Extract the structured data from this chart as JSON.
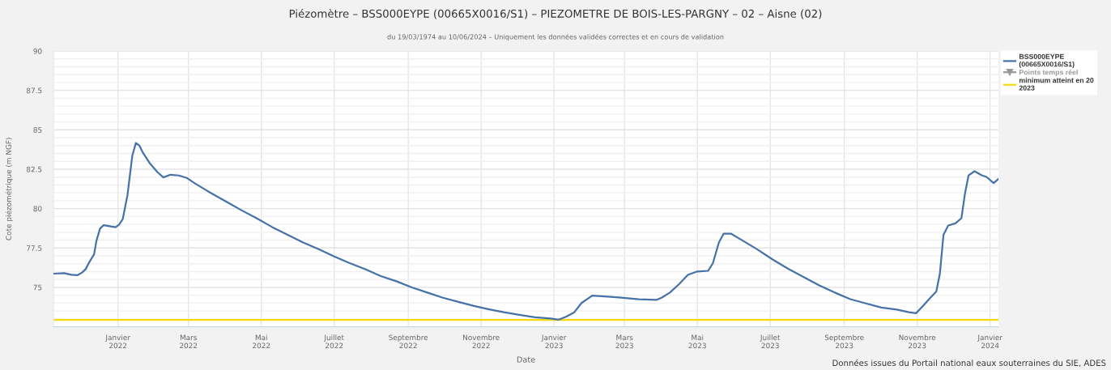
{
  "chart_data": {
    "type": "line",
    "title": "Piézomètre – BSS000EYPE (00665X0016/S1) – PIEZOMETRE DE BOIS-LES-PARGNY – 02 – Aisne (02)",
    "subtitle": "du 19/03/1974 au 10/06/2024 – Uniquement les données validées correctes et en cours de validation",
    "xlabel": "Date",
    "ylabel": "Cote piézométrique (m NGF)",
    "series": [
      {
        "name": "BSS000EYPE\n(00665X0016/S1)",
        "color": "#4572a7",
        "x": [
          "2021-11-08",
          "2021-11-17",
          "2021-11-23",
          "2021-11-28",
          "2021-12-02",
          "2021-12-05",
          "2021-12-08",
          "2021-12-12",
          "2021-12-14",
          "2021-12-17",
          "2021-12-20",
          "2021-12-24",
          "2021-12-30",
          "2022-01-02",
          "2022-01-05",
          "2022-01-09",
          "2022-01-13",
          "2022-01-16",
          "2022-01-19",
          "2022-01-22",
          "2022-01-28",
          "2022-02-03",
          "2022-02-08",
          "2022-02-14",
          "2022-02-21",
          "2022-02-28",
          "2022-03-06",
          "2022-03-19",
          "2022-04-01",
          "2022-04-14",
          "2022-04-27",
          "2022-05-10",
          "2022-05-23",
          "2022-06-05",
          "2022-06-18",
          "2022-07-01",
          "2022-07-14",
          "2022-07-27",
          "2022-08-09",
          "2022-08-22",
          "2022-09-04",
          "2022-09-17",
          "2022-09-30",
          "2022-10-13",
          "2022-10-26",
          "2022-11-07",
          "2022-11-20",
          "2022-12-03",
          "2022-12-16",
          "2022-12-29",
          "2023-01-05",
          "2023-01-11",
          "2023-01-18",
          "2023-01-24",
          "2023-02-02",
          "2023-02-15",
          "2023-02-28",
          "2023-03-13",
          "2023-03-28",
          "2023-04-01",
          "2023-04-08",
          "2023-04-16",
          "2023-04-23",
          "2023-05-01",
          "2023-05-10",
          "2023-05-14",
          "2023-05-19",
          "2023-05-23",
          "2023-05-29",
          "2023-06-07",
          "2023-06-20",
          "2023-07-03",
          "2023-07-16",
          "2023-07-29",
          "2023-08-11",
          "2023-08-24",
          "2023-09-06",
          "2023-09-19",
          "2023-10-02",
          "2023-10-15",
          "2023-10-25",
          "2023-10-31",
          "2023-11-05",
          "2023-11-12",
          "2023-11-17",
          "2023-11-20",
          "2023-11-23",
          "2023-11-27",
          "2023-12-03",
          "2023-12-08",
          "2023-12-11",
          "2023-12-14",
          "2023-12-19",
          "2023-12-25",
          "2023-12-29",
          "2024-01-04",
          "2024-01-08"
        ],
        "values": [
          75.87,
          75.9,
          75.8,
          75.77,
          75.94,
          76.16,
          76.6,
          77.1,
          77.96,
          78.73,
          78.95,
          78.9,
          78.82,
          78.99,
          79.33,
          80.87,
          83.35,
          84.16,
          83.99,
          83.53,
          82.84,
          82.32,
          81.98,
          82.15,
          82.1,
          81.93,
          81.62,
          81.02,
          80.47,
          79.91,
          79.39,
          78.83,
          78.34,
          77.85,
          77.42,
          76.96,
          76.54,
          76.15,
          75.72,
          75.39,
          75.0,
          74.67,
          74.34,
          74.08,
          73.82,
          73.62,
          73.42,
          73.26,
          73.1,
          73.03,
          72.95,
          73.13,
          73.42,
          74.01,
          74.48,
          74.41,
          74.34,
          74.25,
          74.21,
          74.34,
          74.67,
          75.23,
          75.79,
          76.01,
          76.05,
          76.54,
          77.85,
          78.41,
          78.41,
          78.01,
          77.42,
          76.77,
          76.18,
          75.65,
          75.13,
          74.67,
          74.25,
          73.98,
          73.72,
          73.59,
          73.42,
          73.36,
          73.75,
          74.34,
          74.74,
          75.88,
          78.34,
          78.93,
          79.06,
          79.39,
          80.96,
          82.11,
          82.37,
          82.11,
          82.01,
          81.62,
          81.88
        ]
      },
      {
        "name": "Points temps réel",
        "type": "line",
        "color": "#999999",
        "marker": "triangle"
      }
    ],
    "ref_lines": [
      {
        "axis": "y",
        "value": 72.93,
        "label": "minimum atteint en 20\n2023",
        "color": "#f5d90a"
      }
    ],
    "xlim": [
      "2021-11-08",
      "2024-01-08"
    ],
    "xticks": [
      {
        "value": "2022-01-01",
        "label": "Janvier\n2022"
      },
      {
        "value": "2022-03-01",
        "label": "Mars\n2022"
      },
      {
        "value": "2022-05-01",
        "label": "Mai\n2022"
      },
      {
        "value": "2022-07-01",
        "label": "Juillet\n2022"
      },
      {
        "value": "2022-09-01",
        "label": "Septembre\n2022"
      },
      {
        "value": "2022-11-01",
        "label": "Novembre\n2022"
      },
      {
        "value": "2023-01-01",
        "label": "Janvier\n2023"
      },
      {
        "value": "2023-03-01",
        "label": "Mars\n2023"
      },
      {
        "value": "2023-05-01",
        "label": "Mai\n2023"
      },
      {
        "value": "2023-07-01",
        "label": "Juillet\n2023"
      },
      {
        "value": "2023-09-01",
        "label": "Septembre\n2023"
      },
      {
        "value": "2023-11-01",
        "label": "Novembre\n2023"
      },
      {
        "value": "2024-01-01",
        "label": "Janvier\n2024"
      }
    ],
    "ylim": [
      72.5,
      90
    ],
    "yticks": [
      {
        "value": 73,
        "label": null
      },
      {
        "value": 73.5,
        "label": null
      },
      {
        "value": 74,
        "label": null
      },
      {
        "value": 74.5,
        "label": null
      },
      75,
      {
        "value": 75.5,
        "label": null
      },
      {
        "value": 76,
        "label": null
      },
      {
        "value": 76.5,
        "label": null
      },
      {
        "value": 77,
        "label": null
      },
      77.5,
      {
        "value": 78,
        "label": null
      },
      {
        "value": 78.5,
        "label": null
      },
      {
        "value": 79,
        "label": null
      },
      {
        "value": 79.5,
        "label": null
      },
      80,
      {
        "value": 80.5,
        "label": null
      },
      {
        "value": 81,
        "label": null
      },
      {
        "value": 81.5,
        "label": null
      },
      {
        "value": 82,
        "label": null
      },
      82.5,
      {
        "value": 83,
        "label": null
      },
      {
        "value": 83.5,
        "label": null
      },
      {
        "value": 84,
        "label": null
      },
      {
        "value": 84.5,
        "label": null
      },
      85,
      {
        "value": 85.5,
        "label": null
      },
      {
        "value": 86,
        "label": null
      },
      {
        "value": 86.5,
        "label": null
      },
      {
        "value": 87,
        "label": null
      },
      87.5,
      {
        "value": 88,
        "label": null
      },
      {
        "value": 88.5,
        "label": null
      },
      {
        "value": 89,
        "label": null
      },
      {
        "value": 89.5,
        "label": null
      },
      90
    ],
    "grid": true,
    "legend": "top right",
    "annotations": [
      "Données issues du Portail national eaux souterraines du SIE, ADES"
    ]
  }
}
